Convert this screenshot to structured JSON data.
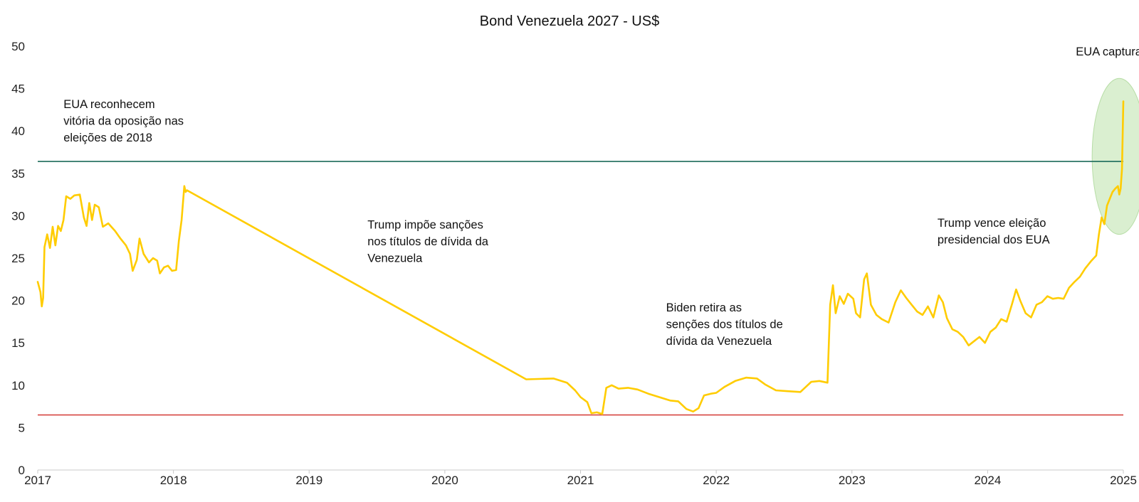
{
  "chart_data": {
    "type": "line",
    "title": "Bond Venezuela 2027 - US$",
    "xlabel": "",
    "ylabel": "",
    "xlim": [
      2017.0,
      2025.0
    ],
    "ylim": [
      0,
      50
    ],
    "grid": false,
    "x_ticks": [
      2017,
      2018,
      2019,
      2020,
      2021,
      2022,
      2023,
      2024,
      2025
    ],
    "y_ticks": [
      0,
      5,
      10,
      15,
      20,
      25,
      30,
      35,
      40,
      45,
      50
    ],
    "colors": {
      "series": "#FFCC00",
      "upper_line": "#1B6B5A",
      "lower_line": "#D64541",
      "highlight": "#CDE9C0",
      "axis": "#c8c8c8"
    },
    "reference_lines": [
      {
        "name": "upper",
        "value": 36.4
      },
      {
        "name": "lower",
        "value": 6.5
      }
    ],
    "highlight": {
      "x_center": 2024.97,
      "y_center": 37.0,
      "x_halfwidth": 0.2,
      "y_halfwidth": 9.2
    },
    "series": [
      {
        "name": "Bond Venezuela 2027",
        "points": [
          [
            2017.0,
            22.2
          ],
          [
            2017.02,
            21.0
          ],
          [
            2017.03,
            19.3
          ],
          [
            2017.04,
            20.3
          ],
          [
            2017.05,
            26.3
          ],
          [
            2017.07,
            27.8
          ],
          [
            2017.09,
            26.2
          ],
          [
            2017.11,
            28.7
          ],
          [
            2017.13,
            26.5
          ],
          [
            2017.15,
            28.8
          ],
          [
            2017.17,
            28.2
          ],
          [
            2017.19,
            29.5
          ],
          [
            2017.21,
            32.3
          ],
          [
            2017.24,
            32.0
          ],
          [
            2017.27,
            32.4
          ],
          [
            2017.31,
            32.5
          ],
          [
            2017.34,
            29.8
          ],
          [
            2017.36,
            28.8
          ],
          [
            2017.38,
            31.5
          ],
          [
            2017.4,
            29.5
          ],
          [
            2017.42,
            31.3
          ],
          [
            2017.45,
            31.0
          ],
          [
            2017.48,
            28.7
          ],
          [
            2017.52,
            29.1
          ],
          [
            2017.57,
            28.2
          ],
          [
            2017.61,
            27.3
          ],
          [
            2017.65,
            26.5
          ],
          [
            2017.68,
            25.5
          ],
          [
            2017.7,
            23.5
          ],
          [
            2017.73,
            24.8
          ],
          [
            2017.75,
            27.3
          ],
          [
            2017.78,
            25.5
          ],
          [
            2017.82,
            24.5
          ],
          [
            2017.85,
            25.0
          ],
          [
            2017.88,
            24.7
          ],
          [
            2017.9,
            23.2
          ],
          [
            2017.93,
            23.9
          ],
          [
            2017.96,
            24.1
          ],
          [
            2017.99,
            23.5
          ],
          [
            2018.02,
            23.6
          ],
          [
            2018.04,
            27.0
          ],
          [
            2018.06,
            29.5
          ],
          [
            2018.08,
            33.5
          ],
          [
            2018.09,
            32.8
          ],
          [
            2018.1,
            33.0
          ],
          [
            2020.6,
            10.7
          ],
          [
            2020.8,
            10.8
          ],
          [
            2020.9,
            10.3
          ],
          [
            2020.96,
            9.4
          ],
          [
            2021.0,
            8.6
          ],
          [
            2021.05,
            8.0
          ],
          [
            2021.08,
            6.7
          ],
          [
            2021.12,
            6.8
          ],
          [
            2021.16,
            6.6
          ],
          [
            2021.19,
            9.7
          ],
          [
            2021.23,
            10.0
          ],
          [
            2021.28,
            9.6
          ],
          [
            2021.35,
            9.7
          ],
          [
            2021.42,
            9.5
          ],
          [
            2021.5,
            9.0
          ],
          [
            2021.58,
            8.6
          ],
          [
            2021.66,
            8.2
          ],
          [
            2021.72,
            8.1
          ],
          [
            2021.78,
            7.2
          ],
          [
            2021.83,
            6.9
          ],
          [
            2021.87,
            7.3
          ],
          [
            2021.91,
            8.8
          ],
          [
            2021.96,
            9.0
          ],
          [
            2022.0,
            9.1
          ],
          [
            2022.06,
            9.8
          ],
          [
            2022.14,
            10.5
          ],
          [
            2022.22,
            10.9
          ],
          [
            2022.3,
            10.8
          ],
          [
            2022.36,
            10.1
          ],
          [
            2022.44,
            9.4
          ],
          [
            2022.52,
            9.3
          ],
          [
            2022.62,
            9.2
          ],
          [
            2022.66,
            9.8
          ],
          [
            2022.7,
            10.4
          ],
          [
            2022.76,
            10.5
          ],
          [
            2022.82,
            10.3
          ],
          [
            2022.84,
            19.5
          ],
          [
            2022.86,
            21.8
          ],
          [
            2022.88,
            18.5
          ],
          [
            2022.91,
            20.5
          ],
          [
            2022.94,
            19.6
          ],
          [
            2022.97,
            20.8
          ],
          [
            2023.01,
            20.2
          ],
          [
            2023.03,
            18.5
          ],
          [
            2023.06,
            18.0
          ],
          [
            2023.09,
            22.5
          ],
          [
            2023.11,
            23.2
          ],
          [
            2023.14,
            19.5
          ],
          [
            2023.18,
            18.3
          ],
          [
            2023.22,
            17.8
          ],
          [
            2023.27,
            17.4
          ],
          [
            2023.32,
            19.8
          ],
          [
            2023.36,
            21.2
          ],
          [
            2023.4,
            20.3
          ],
          [
            2023.44,
            19.5
          ],
          [
            2023.48,
            18.7
          ],
          [
            2023.52,
            18.3
          ],
          [
            2023.56,
            19.3
          ],
          [
            2023.6,
            18.0
          ],
          [
            2023.64,
            20.6
          ],
          [
            2023.67,
            19.8
          ],
          [
            2023.7,
            17.9
          ],
          [
            2023.74,
            16.6
          ],
          [
            2023.78,
            16.3
          ],
          [
            2023.82,
            15.7
          ],
          [
            2023.86,
            14.7
          ],
          [
            2023.9,
            15.2
          ],
          [
            2023.94,
            15.7
          ],
          [
            2023.98,
            15.0
          ],
          [
            2024.02,
            16.3
          ],
          [
            2024.06,
            16.8
          ],
          [
            2024.1,
            17.8
          ],
          [
            2024.14,
            17.5
          ],
          [
            2024.18,
            19.6
          ],
          [
            2024.21,
            21.3
          ],
          [
            2024.24,
            20.0
          ],
          [
            2024.28,
            18.5
          ],
          [
            2024.32,
            18.0
          ],
          [
            2024.36,
            19.5
          ],
          [
            2024.4,
            19.8
          ],
          [
            2024.44,
            20.5
          ],
          [
            2024.48,
            20.2
          ],
          [
            2024.52,
            20.3
          ],
          [
            2024.56,
            20.2
          ],
          [
            2024.6,
            21.5
          ],
          [
            2024.64,
            22.2
          ],
          [
            2024.68,
            22.8
          ],
          [
            2024.72,
            23.8
          ],
          [
            2024.76,
            24.6
          ],
          [
            2024.8,
            25.3
          ],
          [
            2024.82,
            27.8
          ],
          [
            2024.84,
            29.8
          ],
          [
            2024.86,
            29.0
          ],
          [
            2024.88,
            31.2
          ],
          [
            2024.9,
            32.0
          ],
          [
            2024.92,
            32.8
          ],
          [
            2024.94,
            33.2
          ],
          [
            2024.96,
            33.5
          ],
          [
            2024.97,
            32.5
          ],
          [
            2024.98,
            33.2
          ],
          [
            2024.99,
            35.5
          ],
          [
            2025.0,
            43.5
          ]
        ]
      }
    ],
    "annotations": [
      {
        "lines": [
          "EUA reconhecem",
          "vitória da oposição nas",
          "eleições de 2018"
        ],
        "x": 2017.19,
        "y": 42.7
      },
      {
        "lines": [
          "Trump impõe sanções",
          "nos títulos de dívida da",
          "Venezuela"
        ],
        "x": 2019.43,
        "y": 28.5
      },
      {
        "lines": [
          "Biden retira as",
          "senções dos títulos de",
          "dívida da Venezuela"
        ],
        "x": 2021.63,
        "y": 18.7
      },
      {
        "lines": [
          "Trump vence eleição",
          "presidencial dos EUA"
        ],
        "x": 2023.63,
        "y": 28.7
      },
      {
        "lines": [
          "EUA capturam Maduro"
        ],
        "x": 2024.65,
        "y": 48.9
      }
    ]
  }
}
